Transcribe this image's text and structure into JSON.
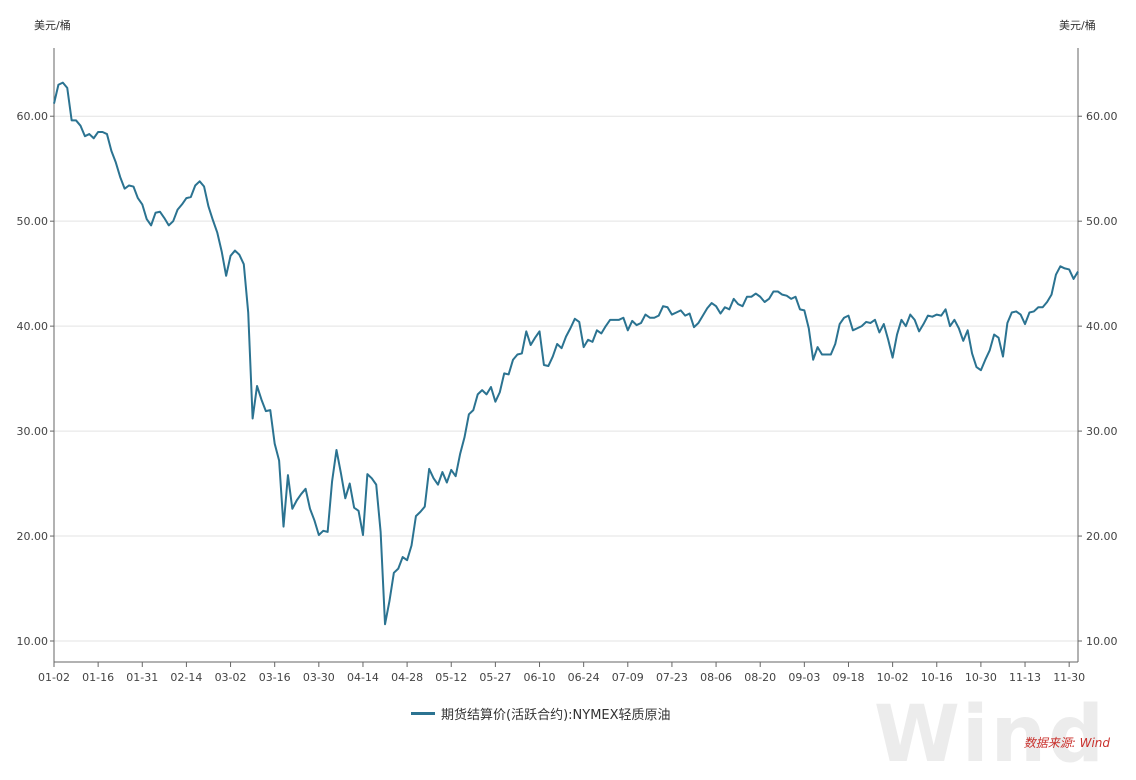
{
  "chart_data": {
    "type": "line",
    "unit_left": "美元/桶",
    "unit_right": "美元/桶",
    "ylim": [
      8,
      66.5
    ],
    "y_ticks": [
      "10.00",
      "20.00",
      "30.00",
      "40.00",
      "50.00",
      "60.00"
    ],
    "y_tick_values": [
      10,
      20,
      30,
      40,
      50,
      60
    ],
    "x_ticks": [
      "01-02",
      "01-16",
      "01-31",
      "02-14",
      "03-02",
      "03-16",
      "03-30",
      "04-14",
      "04-28",
      "05-12",
      "05-27",
      "06-10",
      "06-24",
      "07-09",
      "07-23",
      "08-06",
      "08-20",
      "09-03",
      "09-18",
      "10-02",
      "10-16",
      "10-30",
      "11-13",
      "11-30"
    ],
    "x_tick_index": [
      0,
      10,
      20,
      30,
      40,
      50,
      60,
      70,
      80,
      90,
      100,
      110,
      120,
      130,
      140,
      150,
      160,
      170,
      180,
      190,
      200,
      210,
      220,
      230
    ],
    "series": [
      {
        "name": "期货结算价(活跃合约):NYMEX轻质原油",
        "color": "#2b7391",
        "values": [
          61.2,
          63.0,
          63.2,
          62.7,
          59.6,
          59.6,
          59.1,
          58.1,
          58.3,
          57.9,
          58.5,
          58.5,
          58.3,
          56.7,
          55.6,
          54.2,
          53.1,
          53.4,
          53.3,
          52.2,
          51.6,
          50.2,
          49.6,
          50.8,
          50.9,
          50.3,
          49.6,
          50.0,
          51.1,
          51.6,
          52.2,
          52.3,
          53.4,
          53.8,
          53.3,
          51.4,
          50.1,
          48.9,
          47.1,
          44.8,
          46.7,
          47.2,
          46.8,
          45.9,
          41.3,
          31.2,
          34.3,
          33.0,
          31.9,
          32.0,
          28.8,
          27.2,
          20.9,
          25.8,
          22.6,
          23.4,
          24.0,
          24.5,
          22.6,
          21.5,
          20.1,
          20.5,
          20.4,
          25.2,
          28.2,
          26.0,
          23.6,
          25.0,
          22.7,
          22.4,
          20.1,
          25.9,
          25.5,
          24.9,
          20.4,
          11.6,
          13.8,
          16.5,
          16.9,
          18.0,
          17.7,
          19.1,
          21.9,
          22.3,
          22.8,
          26.4,
          25.5,
          24.9,
          26.1,
          25.1,
          26.3,
          25.7,
          27.8,
          29.4,
          31.6,
          32.0,
          33.5,
          33.9,
          33.5,
          34.2,
          32.8,
          33.7,
          35.5,
          35.4,
          36.8,
          37.3,
          37.4,
          39.5,
          38.2,
          38.9,
          39.5,
          36.3,
          36.2,
          37.1,
          38.3,
          37.9,
          39.0,
          39.8,
          40.7,
          40.4,
          38.0,
          38.7,
          38.5,
          39.6,
          39.3,
          40.0,
          40.6,
          40.6,
          40.6,
          40.8,
          39.6,
          40.5,
          40.1,
          40.3,
          41.1,
          40.8,
          40.8,
          41.0,
          41.9,
          41.8,
          41.1,
          41.3,
          41.5,
          41.0,
          41.2,
          39.9,
          40.3,
          41.0,
          41.7,
          42.2,
          41.9,
          41.2,
          41.8,
          41.6,
          42.6,
          42.1,
          41.9,
          42.8,
          42.8,
          43.1,
          42.8,
          42.3,
          42.6,
          43.3,
          43.3,
          43.0,
          42.9,
          42.6,
          42.8,
          41.6,
          41.5,
          39.8,
          36.8,
          38.0,
          37.3,
          37.3,
          37.3,
          38.3,
          40.2,
          40.8,
          41.0,
          39.6,
          39.8,
          40.0,
          40.4,
          40.3,
          40.6,
          39.4,
          40.2,
          38.7,
          37.0,
          39.2,
          40.6,
          40.0,
          41.1,
          40.6,
          39.5,
          40.2,
          41.0,
          40.9,
          41.1,
          41.0,
          41.6,
          40.0,
          40.6,
          39.8,
          38.6,
          39.6,
          37.4,
          36.1,
          35.8,
          36.8,
          37.7,
          39.2,
          38.9,
          37.1,
          40.3,
          41.3,
          41.4,
          41.1,
          40.2,
          41.3,
          41.4,
          41.8,
          41.8,
          42.3,
          43.0,
          44.9,
          45.7,
          45.5,
          45.4,
          44.5,
          45.2
        ]
      }
    ]
  },
  "legend": {
    "label": "期货结算价(活跃合约):NYMEX轻质原油"
  },
  "source": "数据来源: Wind",
  "watermark": "Wind"
}
